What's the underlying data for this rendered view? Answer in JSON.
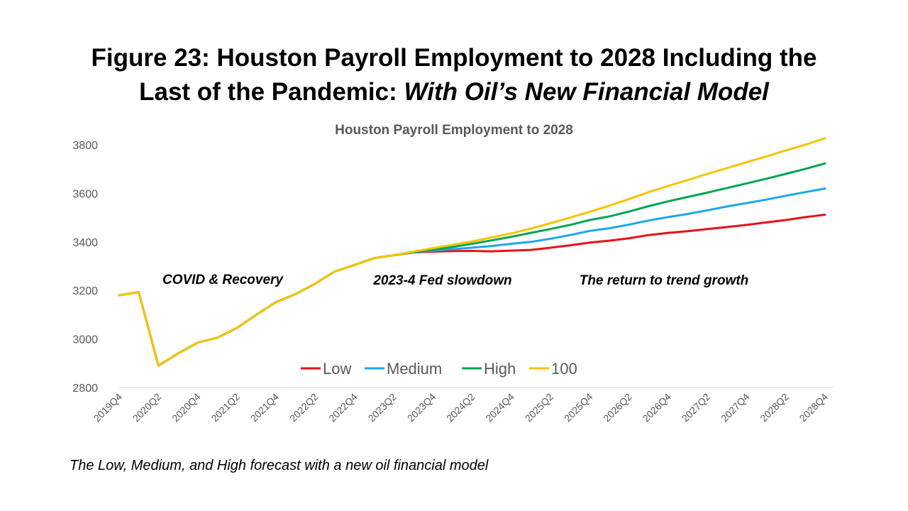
{
  "slide": {
    "title_line1": "Figure 23: Houston Payroll Employment to 2028 Including the",
    "title_line2_prefix": "Last of the Pandemic: ",
    "title_line2_italic": "With Oil’s New Financial Model",
    "footnote": "The Low, Medium, and High forecast with a new oil financial model"
  },
  "chart_data": {
    "type": "line",
    "title": "Houston Payroll Employment to 2028",
    "xlabel": "",
    "ylabel": "",
    "ylim": [
      2800,
      3800
    ],
    "yticks": [
      2800,
      3000,
      3200,
      3400,
      3600,
      3800
    ],
    "grid": false,
    "legend_position": "bottom-center",
    "x": [
      "2019Q4",
      "2020Q1",
      "2020Q2",
      "2020Q3",
      "2020Q4",
      "2021Q1",
      "2021Q2",
      "2021Q3",
      "2021Q4",
      "2022Q1",
      "2022Q2",
      "2022Q3",
      "2022Q4",
      "2023Q1",
      "2023Q2",
      "2023Q3",
      "2023Q4",
      "2024Q1",
      "2024Q2",
      "2024Q3",
      "2024Q4",
      "2025Q1",
      "2025Q2",
      "2025Q3",
      "2025Q4",
      "2026Q1",
      "2026Q2",
      "2026Q3",
      "2026Q4",
      "2027Q1",
      "2027Q2",
      "2027Q3",
      "2027Q4",
      "2028Q1",
      "2028Q2",
      "2028Q3",
      "2028Q4"
    ],
    "x_tick_labels": [
      "2019Q4",
      "2020Q2",
      "2020Q4",
      "2021Q2",
      "2021Q4",
      "2022Q2",
      "2022Q4",
      "2023Q2",
      "2023Q4",
      "2024Q2",
      "2024Q4",
      "2025Q2",
      "2025Q4",
      "2026Q2",
      "2026Q4",
      "2027Q2",
      "2027Q4",
      "2028Q2",
      "2028Q4"
    ],
    "series": [
      {
        "name": "Low",
        "color": "#e8101a",
        "values": [
          3180,
          3193,
          2890,
          2940,
          2985,
          3005,
          3045,
          3100,
          3152,
          3185,
          3228,
          3278,
          3305,
          3333,
          3345,
          3356,
          3360,
          3362,
          3363,
          3361,
          3364,
          3367,
          3376,
          3386,
          3397,
          3405,
          3415,
          3428,
          3437,
          3444,
          3453,
          3461,
          3470,
          3480,
          3490,
          3502,
          3512
        ]
      },
      {
        "name": "Medium",
        "color": "#1ea7e8",
        "values": [
          3180,
          3193,
          2890,
          2940,
          2985,
          3005,
          3045,
          3100,
          3152,
          3185,
          3228,
          3278,
          3305,
          3333,
          3345,
          3357,
          3364,
          3370,
          3376,
          3383,
          3392,
          3400,
          3413,
          3428,
          3445,
          3456,
          3471,
          3488,
          3502,
          3515,
          3530,
          3546,
          3560,
          3574,
          3590,
          3605,
          3620
        ]
      },
      {
        "name": "High",
        "color": "#00a651",
        "values": [
          3180,
          3193,
          2890,
          2940,
          2985,
          3005,
          3045,
          3100,
          3152,
          3185,
          3228,
          3278,
          3305,
          3333,
          3345,
          3358,
          3368,
          3379,
          3392,
          3406,
          3421,
          3437,
          3453,
          3470,
          3490,
          3505,
          3525,
          3547,
          3567,
          3585,
          3603,
          3622,
          3641,
          3660,
          3680,
          3701,
          3723
        ]
      },
      {
        "name": "100",
        "color": "#f8c400",
        "values": [
          3180,
          3193,
          2890,
          2940,
          2985,
          3005,
          3045,
          3100,
          3152,
          3185,
          3228,
          3278,
          3305,
          3333,
          3345,
          3360,
          3374,
          3388,
          3402,
          3418,
          3435,
          3455,
          3477,
          3500,
          3524,
          3549,
          3576,
          3605,
          3630,
          3655,
          3680,
          3704,
          3728,
          3752,
          3777,
          3800,
          3827
        ]
      }
    ],
    "annotations": [
      {
        "text": "COVID & Recovery"
      },
      {
        "text": "2023-4 Fed slowdown"
      },
      {
        "text": "The return to trend growth"
      }
    ]
  }
}
